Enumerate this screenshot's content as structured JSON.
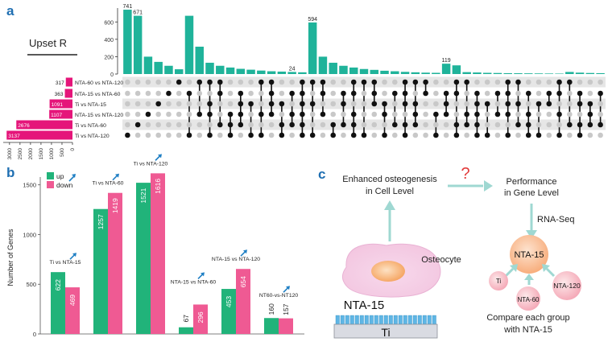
{
  "panel_a_label": "a",
  "panel_b_label": "b",
  "panel_c_label": "c",
  "chart_data": [
    {
      "type": "bar",
      "title": "Upset R",
      "sets": [
        "NTA-60 vs NTA-120",
        "NTA-15 vs NTA-60",
        "Ti vs NTA-15",
        "NTA-15 vs NTA-120",
        "Ti vs NTA-60",
        "Ti vs NTA-120"
      ],
      "set_sizes": [
        317,
        363,
        1091,
        1107,
        2676,
        3137
      ],
      "set_size_ticks": [
        3000,
        2500,
        2000,
        1500,
        1000,
        500,
        0
      ],
      "intersection_yticks": [
        0,
        200,
        400,
        600
      ],
      "intersection_ylim": [
        0,
        760
      ],
      "intersection_values": [
        741,
        671,
        200,
        140,
        95,
        55,
        671,
        315,
        130,
        95,
        75,
        60,
        50,
        40,
        32,
        28,
        24,
        20,
        594,
        200,
        130,
        95,
        75,
        58,
        48,
        38,
        32,
        25,
        20,
        16,
        14,
        119,
        100,
        22,
        18,
        14,
        12,
        10,
        9,
        8,
        7,
        6,
        5,
        24,
        16,
        12,
        10
      ],
      "labeled_values": [
        "741",
        "671",
        "594",
        "119",
        "24"
      ]
    },
    {
      "type": "bar",
      "ylabel": "Number of Genes",
      "yticks": [
        0,
        500,
        1000,
        1500
      ],
      "ylim": [
        0,
        1700
      ],
      "legend": [
        "up",
        "down"
      ],
      "colors": {
        "up": "#21b37a",
        "down": "#ef5a93"
      },
      "categories": [
        "Ti vs NTA-15",
        "Ti vs NTA-60",
        "Ti vs NTA-120",
        "NTA-15 vs NTA-60",
        "NTA-15 vs NTA-120",
        "NT60-vs-NT120"
      ],
      "series": [
        {
          "name": "up",
          "values": [
            622,
            1257,
            1521,
            67,
            453,
            160
          ]
        },
        {
          "name": "down",
          "values": [
            469,
            1419,
            1616,
            296,
            654,
            157
          ]
        }
      ]
    }
  ],
  "diagram": {
    "enhanced_line1": "Enhanced osteogenesis",
    "enhanced_line2": "in Cell Level",
    "question": "?",
    "performance_line1": "Performance",
    "performance_line2": "in Gene Level",
    "rna_seq": "RNA-Seq",
    "osteocyte": "Osteocyte",
    "nta15_surface": "NTA-15",
    "ti": "Ti",
    "center_node": "NTA-15",
    "node_ti": "Ti",
    "node_nta60": "NTA-60",
    "node_nta120": "NTA-120",
    "compare_line1": "Compare each group",
    "compare_line2": "with NTA-15"
  }
}
